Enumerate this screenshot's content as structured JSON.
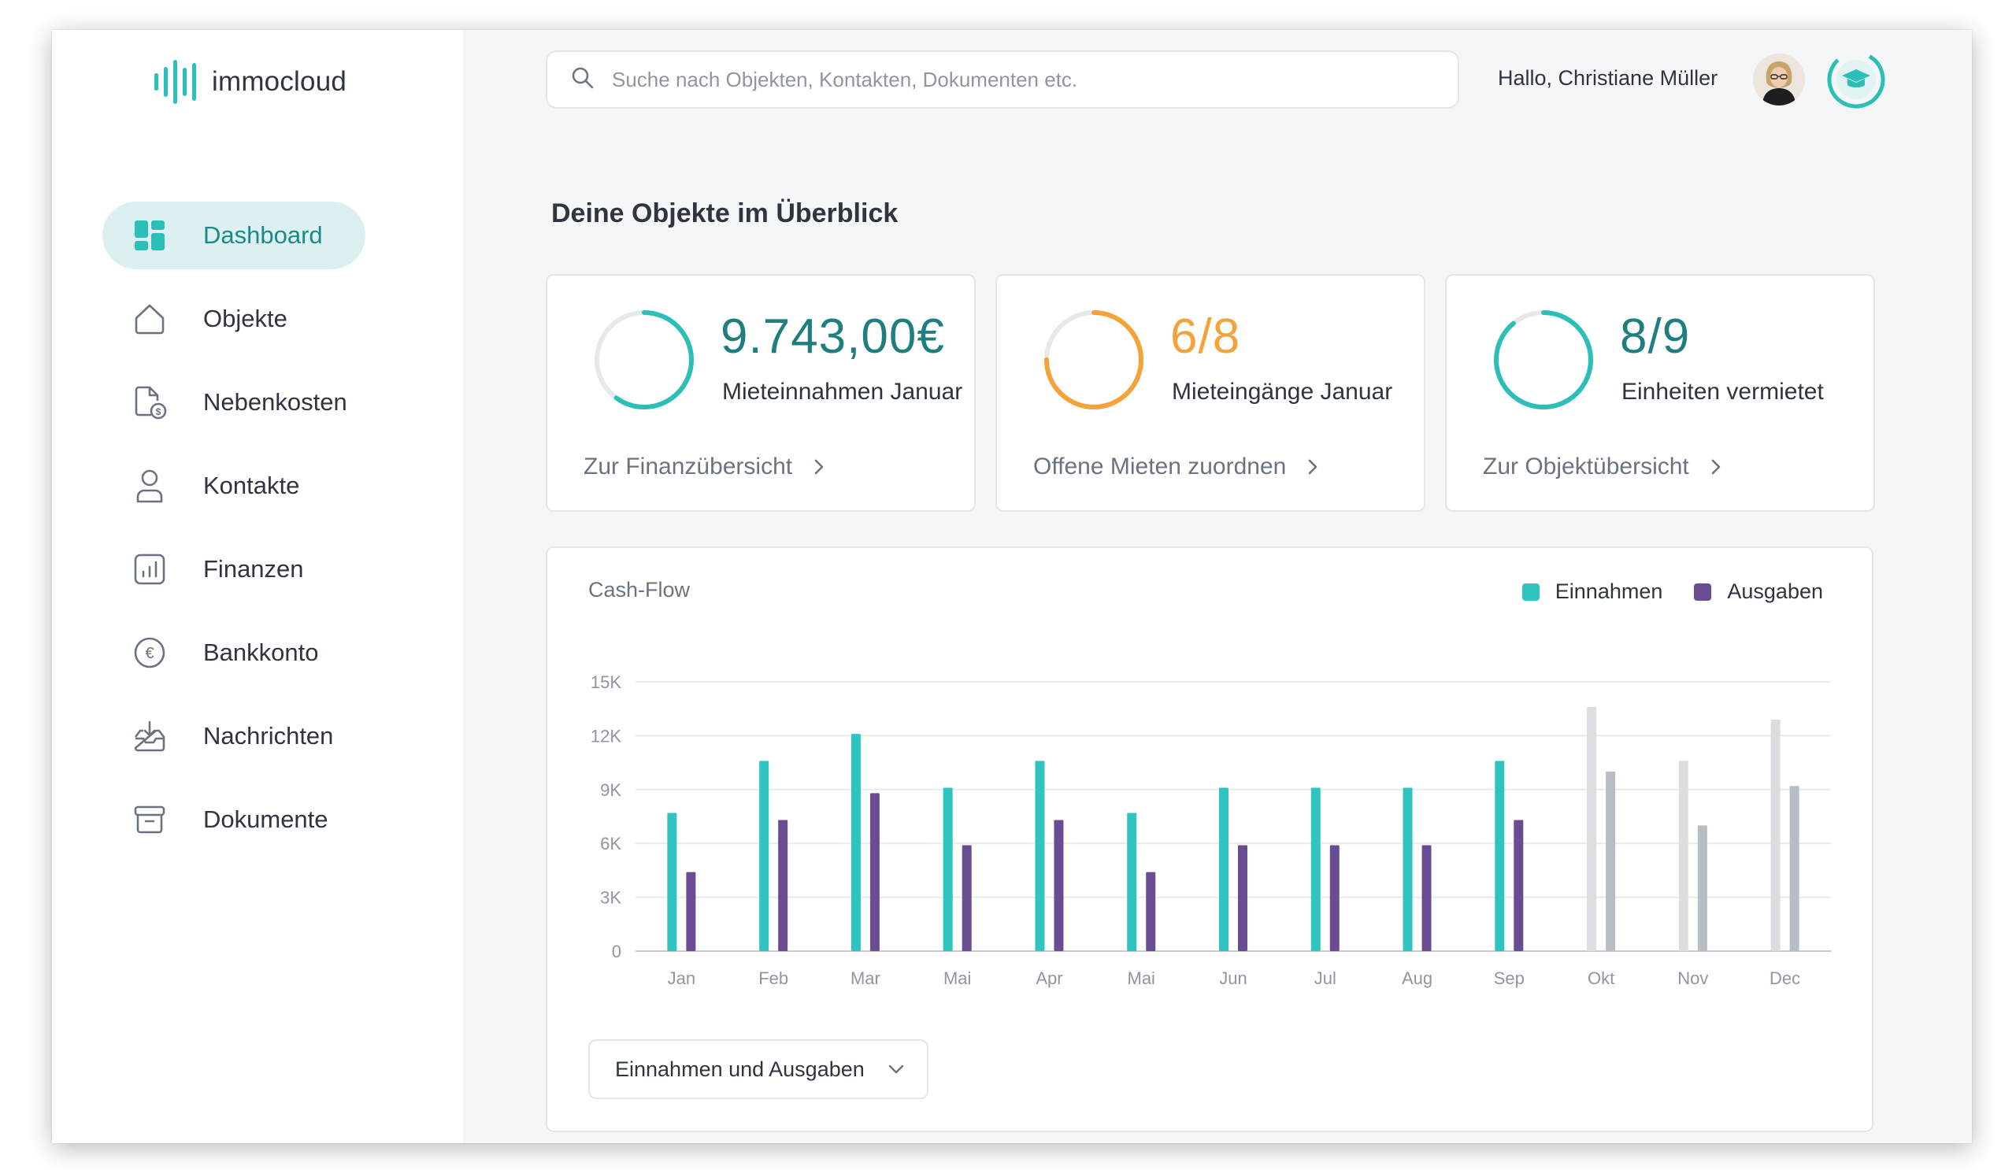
{
  "app": {
    "name": "immocloud"
  },
  "nav": {
    "items": [
      {
        "label": "Dashboard",
        "icon": "dashboard-icon",
        "active": true
      },
      {
        "label": "Objekte",
        "icon": "house-icon",
        "active": false
      },
      {
        "label": "Nebenkosten",
        "icon": "document-coin-icon",
        "active": false
      },
      {
        "label": "Kontakte",
        "icon": "user-icon",
        "active": false
      },
      {
        "label": "Finanzen",
        "icon": "bar-chart-icon",
        "active": false
      },
      {
        "label": "Bankkonto",
        "icon": "euro-icon",
        "active": false
      },
      {
        "label": "Nachrichten",
        "icon": "inbox-icon",
        "active": false
      },
      {
        "label": "Dokumente",
        "icon": "archive-icon",
        "active": false
      }
    ]
  },
  "header": {
    "search_placeholder": "Suche nach Objekten, Kontakten, Dokumenten etc.",
    "greeting": "Hallo, Christiane Müller"
  },
  "main": {
    "title": "Deine Objekte im Überblick",
    "kpis": [
      {
        "value": "9.743,00€",
        "caption": "Mieteinnahmen Januar",
        "link": "Zur Finanzübersicht",
        "color": "#2bbfb8",
        "progress": 0.6
      },
      {
        "value": "6/8",
        "caption": "Mieteingänge Januar",
        "link": "Offene Mieten zuordnen",
        "color": "#f3a33a",
        "progress": 0.75
      },
      {
        "value": "8/9",
        "caption": "Einheiten vermietet",
        "link": "Zur Objektübersicht",
        "color": "#2bbfb8",
        "progress": 0.89
      }
    ],
    "dropdown": {
      "selected": "Einnahmen und Ausgaben"
    }
  },
  "colors": {
    "accent": "#2bbfb8",
    "income": "#2fc4bf",
    "expense": "#6a4c93",
    "future_income": "#dcdde1",
    "future_expense": "#b8bcc4",
    "kpi_orange": "#f3a33a"
  },
  "chart_data": {
    "type": "bar",
    "title": "Cash-Flow",
    "categories": [
      "Jan",
      "Feb",
      "Mar",
      "Mai",
      "Apr",
      "Mai",
      "Jun",
      "Jul",
      "Aug",
      "Sep",
      "Okt",
      "Nov",
      "Dec"
    ],
    "series": [
      {
        "name": "Einnahmen",
        "values": [
          7700,
          10600,
          12100,
          9100,
          10600,
          7700,
          9100,
          9100,
          9100,
          10600,
          13600,
          10600,
          12900
        ]
      },
      {
        "name": "Ausgaben",
        "values": [
          4400,
          7300,
          8800,
          5900,
          7300,
          4400,
          5900,
          5900,
          5900,
          7300,
          10000,
          7000,
          9200
        ]
      }
    ],
    "projected_from_index": 10,
    "y_ticks": [
      "0",
      "3K",
      "6K",
      "9K",
      "12K",
      "15K"
    ],
    "ylim": [
      0,
      15000
    ],
    "grid": true,
    "legend_position": "top-right"
  }
}
